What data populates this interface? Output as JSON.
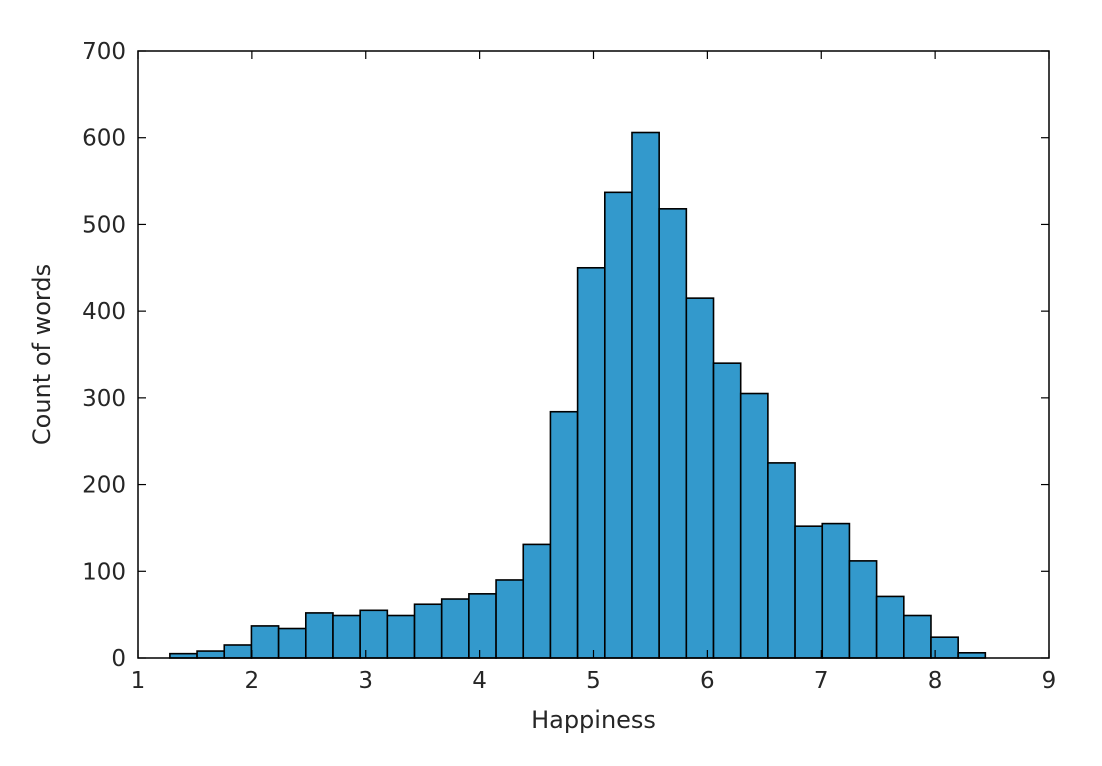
{
  "chart_data": {
    "type": "bar",
    "title": "",
    "xlabel": "Happiness",
    "ylabel": "Count of words",
    "xlim": [
      1,
      9
    ],
    "ylim": [
      0,
      700
    ],
    "xticks": [
      1,
      2,
      3,
      4,
      5,
      6,
      7,
      8,
      9
    ],
    "yticks": [
      0,
      100,
      200,
      300,
      400,
      500,
      600,
      700
    ],
    "grid": false,
    "bar_color": "#3399cc",
    "edge_color": "#000000",
    "bin_start": 1.28,
    "bin_width": 0.2387,
    "values": [
      5,
      8,
      15,
      37,
      34,
      52,
      49,
      55,
      49,
      62,
      68,
      74,
      90,
      131,
      284,
      450,
      537,
      606,
      518,
      415,
      340,
      305,
      225,
      152,
      155,
      112,
      71,
      49,
      24,
      6
    ]
  }
}
